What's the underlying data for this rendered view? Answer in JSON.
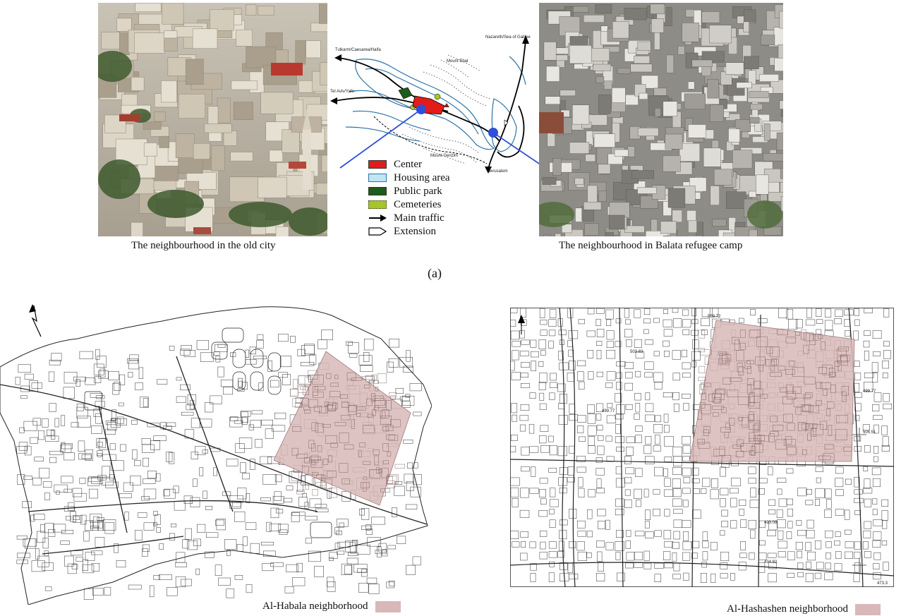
{
  "top": {
    "photo_left_caption": "The neighbourhood in the old city",
    "photo_right_caption": "The neighbourhood in  Balata refugee camp",
    "panel_label": "(a)",
    "map_labels": {
      "tulkarm": "Tulkarm/Caesarea/Haifa",
      "tel_aviv": "Tel Aviv/Yafo",
      "mount_ebal": "Mount Ebal",
      "mount_gerizim": "Mount Gerizim",
      "nazareth": "Nazareth/Sea of Galilee",
      "jerusalem": "Jerusalem"
    },
    "legend": [
      {
        "label": "Center",
        "color": "#e31b1b"
      },
      {
        "label": "Housing area",
        "color": "#bfe6f5"
      },
      {
        "label": "Public park",
        "color": "#1d5c1d"
      },
      {
        "label": "Cemeteries",
        "color": "#a8c42c"
      },
      {
        "label": "Main traffic",
        "color": "#000000"
      },
      {
        "label": "Extension",
        "color": "#ffffff"
      }
    ]
  },
  "bottom": {
    "left_legend": "Al-Habala neighborhood",
    "right_legend": "Al-Hashashen neighborhood",
    "highlight_color": "#d8b8b8",
    "right_map_labels": [
      "499.77",
      "503.83",
      "499.77",
      "505.51",
      "493.08",
      "473.3",
      "434.82",
      "559.72"
    ]
  }
}
